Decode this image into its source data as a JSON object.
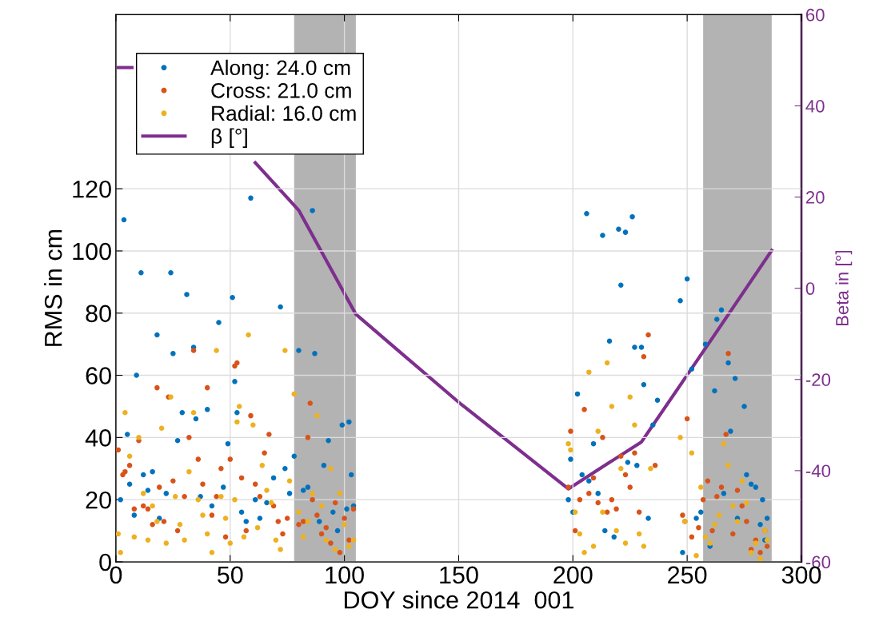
{
  "chart_data": {
    "type": "scatter",
    "xlabel": "DOY since 2014  001",
    "ylabel": "RMS in cm",
    "y2label": "Beta in [°]",
    "xlim": [
      0,
      300
    ],
    "xticks": [
      0,
      50,
      100,
      150,
      200,
      250,
      300
    ],
    "ylim": [
      0,
      176
    ],
    "yticks": [
      0,
      20,
      40,
      60,
      80,
      100,
      120
    ],
    "y2lim": [
      -60,
      60
    ],
    "y2ticks": [
      -60,
      -40,
      -20,
      0,
      20,
      40,
      60
    ],
    "grid": true,
    "legend": "top left",
    "marker": "circle",
    "bands": [
      {
        "axis": "x",
        "from": 78,
        "to": 105,
        "color": "#b3b3b3"
      },
      {
        "axis": "x",
        "from": 257,
        "to": 287,
        "color": "#b3b3b3"
      }
    ],
    "series": [
      {
        "name": "Along: 24.0 cm",
        "color": "#0072bd",
        "x": [
          2,
          3.5,
          5,
          6,
          8,
          9,
          11,
          12,
          14,
          16,
          18,
          19,
          22,
          24,
          25,
          27,
          29,
          31,
          34,
          35,
          37,
          40,
          42,
          45,
          47,
          49,
          51,
          52,
          53,
          55,
          57,
          59,
          61,
          63,
          66,
          69,
          72,
          74,
          76,
          78,
          80,
          82,
          84,
          86,
          87,
          89,
          91,
          93,
          95,
          97,
          99,
          101,
          102,
          103,
          104,
          198,
          199,
          200,
          202,
          204,
          206,
          207,
          209,
          211,
          213,
          214,
          216,
          218,
          220,
          221,
          223,
          224,
          226,
          227,
          228,
          230,
          231,
          233,
          235,
          237,
          247,
          248,
          250,
          252,
          254,
          256,
          258,
          260,
          262,
          263,
          265,
          266,
          268,
          269,
          271,
          272,
          275,
          276,
          278,
          280,
          282,
          283,
          284,
          285
        ],
        "values": [
          20,
          110,
          41,
          25,
          15,
          60,
          93,
          28,
          23,
          29,
          73,
          14,
          22,
          93,
          67,
          39,
          48,
          86,
          69,
          46,
          21,
          49,
          18,
          77,
          24,
          38,
          85,
          58,
          48,
          16,
          13,
          117,
          20,
          14,
          19,
          27,
          82,
          30,
          22,
          34,
          68,
          23,
          24,
          113,
          67,
          13,
          31,
          39,
          16,
          10,
          44,
          17,
          45,
          28,
          18,
          20,
          33,
          16,
          54,
          28,
          112,
          26,
          38,
          22,
          105,
          10,
          71,
          8,
          107,
          89,
          106,
          32,
          111,
          69,
          31,
          69,
          57,
          14,
          44,
          52,
          84,
          3,
          91,
          62,
          14,
          16,
          70,
          5,
          55,
          78,
          81,
          22,
          64,
          42,
          59,
          14,
          50,
          28,
          25,
          24,
          12,
          20,
          7,
          14
        ]
      },
      {
        "name": "Cross: 21.0 cm",
        "color": "#d95319",
        "x": [
          1,
          3,
          4,
          6,
          8,
          10,
          12,
          14,
          16,
          18,
          19,
          21,
          23,
          25,
          27,
          30,
          32,
          34,
          36,
          38,
          40,
          42,
          44,
          46,
          48,
          50,
          52,
          53,
          55,
          57,
          59,
          61,
          63,
          65,
          67,
          69,
          71,
          73,
          75,
          80,
          82,
          84,
          85,
          86,
          88,
          90,
          92,
          94,
          96,
          98,
          100,
          102,
          104,
          198,
          199,
          201,
          203,
          205,
          207,
          209,
          211,
          213,
          215,
          217,
          219,
          221,
          223,
          225,
          227,
          229,
          231,
          233,
          236,
          248,
          249,
          250,
          252,
          255,
          257,
          259,
          261,
          263,
          265,
          267,
          268,
          270,
          272,
          274,
          276,
          278,
          280,
          282,
          284,
          285
        ],
        "values": [
          36,
          28,
          29,
          31,
          17,
          39,
          18,
          17,
          12,
          56,
          24,
          13,
          53,
          26,
          10,
          21,
          40,
          68,
          33,
          25,
          56,
          15,
          21,
          30,
          8,
          33,
          63,
          64,
          27,
          10,
          47,
          25,
          21,
          35,
          41,
          18,
          13,
          9,
          14,
          12,
          13,
          40,
          51,
          20,
          15,
          9,
          11,
          6,
          19,
          3,
          14,
          7,
          17,
          24,
          42,
          10,
          20,
          49,
          22,
          27,
          19,
          40,
          16,
          20,
          17,
          34,
          28,
          24,
          35,
          16,
          66,
          73,
          31,
          15,
          13,
          46,
          8,
          11,
          20,
          26,
          10,
          21,
          24,
          41,
          67,
          9,
          23,
          18,
          13,
          4,
          7,
          3,
          10,
          5
        ]
      },
      {
        "name": "Radial: 16.0 cm",
        "color": "#edb120",
        "x": [
          1,
          2,
          4,
          6,
          8,
          10,
          12,
          14,
          16,
          18,
          20,
          22,
          24,
          26,
          28,
          30,
          32,
          34,
          36,
          38,
          40,
          42,
          44,
          46,
          48,
          50,
          52,
          53,
          54,
          56,
          58,
          60,
          62,
          64,
          66,
          68,
          70,
          72,
          74,
          76,
          78,
          80,
          82,
          84,
          86,
          88,
          90,
          92,
          94,
          96,
          98,
          100,
          102,
          104,
          198,
          199,
          201,
          203,
          205,
          207,
          209,
          211,
          213,
          215,
          217,
          219,
          221,
          223,
          225,
          227,
          229,
          231,
          234,
          247,
          249,
          252,
          254,
          256,
          258,
          260,
          262,
          264,
          266,
          268,
          270,
          272,
          274,
          276,
          278,
          280,
          282,
          284,
          285
        ],
        "values": [
          9,
          3,
          48,
          34,
          8,
          40,
          22,
          7,
          18,
          13,
          43,
          6,
          53,
          21,
          12,
          7,
          29,
          48,
          20,
          15,
          9,
          3,
          68,
          21,
          14,
          6,
          20,
          45,
          50,
          8,
          73,
          44,
          11,
          31,
          23,
          19,
          7,
          4,
          68,
          26,
          54,
          16,
          8,
          13,
          22,
          47,
          18,
          7,
          30,
          4,
          22,
          12,
          5,
          7,
          38,
          36,
          16,
          9,
          3,
          61,
          5,
          42,
          16,
          64,
          50,
          10,
          30,
          6,
          53,
          44,
          9,
          5,
          30,
          40,
          13,
          35,
          2,
          24,
          8,
          6,
          12,
          15,
          38,
          31,
          18,
          13,
          26,
          19,
          3,
          6,
          1,
          10,
          7
        ]
      },
      {
        "name": "β [°]",
        "type": "line",
        "axis": "y2",
        "color": "#7e2f8e",
        "line_style": "solid",
        "marker": "none",
        "x": [
          1,
          7,
          null,
          61,
          80,
          105,
          150,
          198,
          230,
          260,
          287
        ],
        "values": [
          48.4,
          48.4,
          null,
          27.5,
          17.1,
          -5.7,
          -25,
          -44,
          -33.7,
          -11.7,
          8.3
        ]
      }
    ]
  }
}
